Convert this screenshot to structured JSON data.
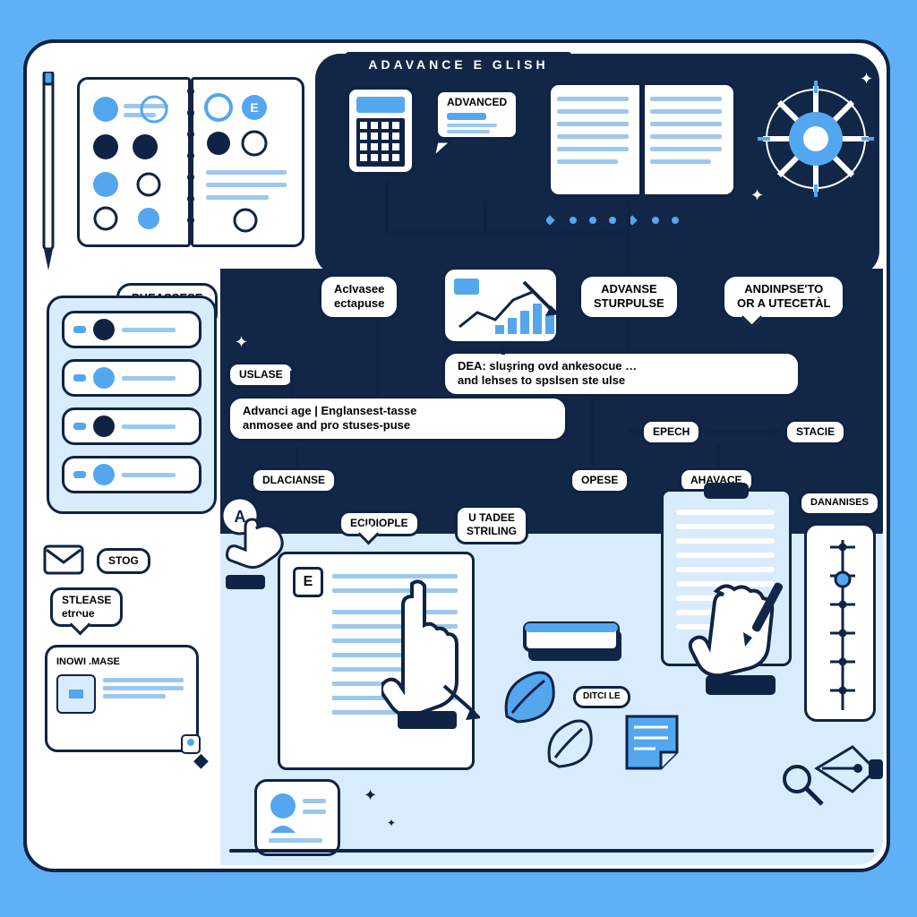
{
  "colors": {
    "bg": "#5fb0f4",
    "navy": "#122648",
    "navy_line": "#0f2345",
    "sky": "#54a7ef",
    "panel": "#d9ecfd",
    "white": "#ffffff",
    "line_soft": "#9cc8ef"
  },
  "layout": {
    "frame_radius": 34,
    "frame_border": 4
  },
  "title": "ADAVANCE E GLISH",
  "labels": {
    "advanced_tag": "ADVANCED",
    "phrases_examples": "PHEASSESE\nCXILOPLES",
    "usage": "USLASE",
    "advance_ectepuse": "AcIvasee\nectapuse",
    "advanse_sturpulse": "ADVANSE\nSTURPULSE",
    "andinpse": "ANDINPSE'TO\nOR A UTECETÀL",
    "long_sentence": "Advanci age | Englansest‑tasse\nanmosee and pro stuses‑puse",
    "desc_sentence": "DEA: sluşring ovd ankesocue …\nand lehses to spslsen ste ulse",
    "dlacianse": "DLACIANSE",
    "ecidiople": "ECIDIOPLE",
    "u_tadee": "U TADEE\nSTRILING",
    "opese": "OPESE",
    "epech": "EPECH",
    "stacie": "STACIE",
    "ahavace": "AHAVACE",
    "damanises": "DANANISES",
    "stog": "STOG",
    "stlease": "STLEASE\netroue",
    "inowi": "INOWI .MASE",
    "ditci": "DITCI LE",
    "book_e": "E"
  },
  "fonts": {
    "title_size": 14,
    "title_tracking": 4,
    "pill_size": 14,
    "pill_small": 12
  },
  "book_lines_color_left": "#54a7ef",
  "book_lines_color_right": "#9cc8ef",
  "chart_bars": [
    10,
    18,
    26,
    34,
    22
  ],
  "gauge_ticks": 6
}
